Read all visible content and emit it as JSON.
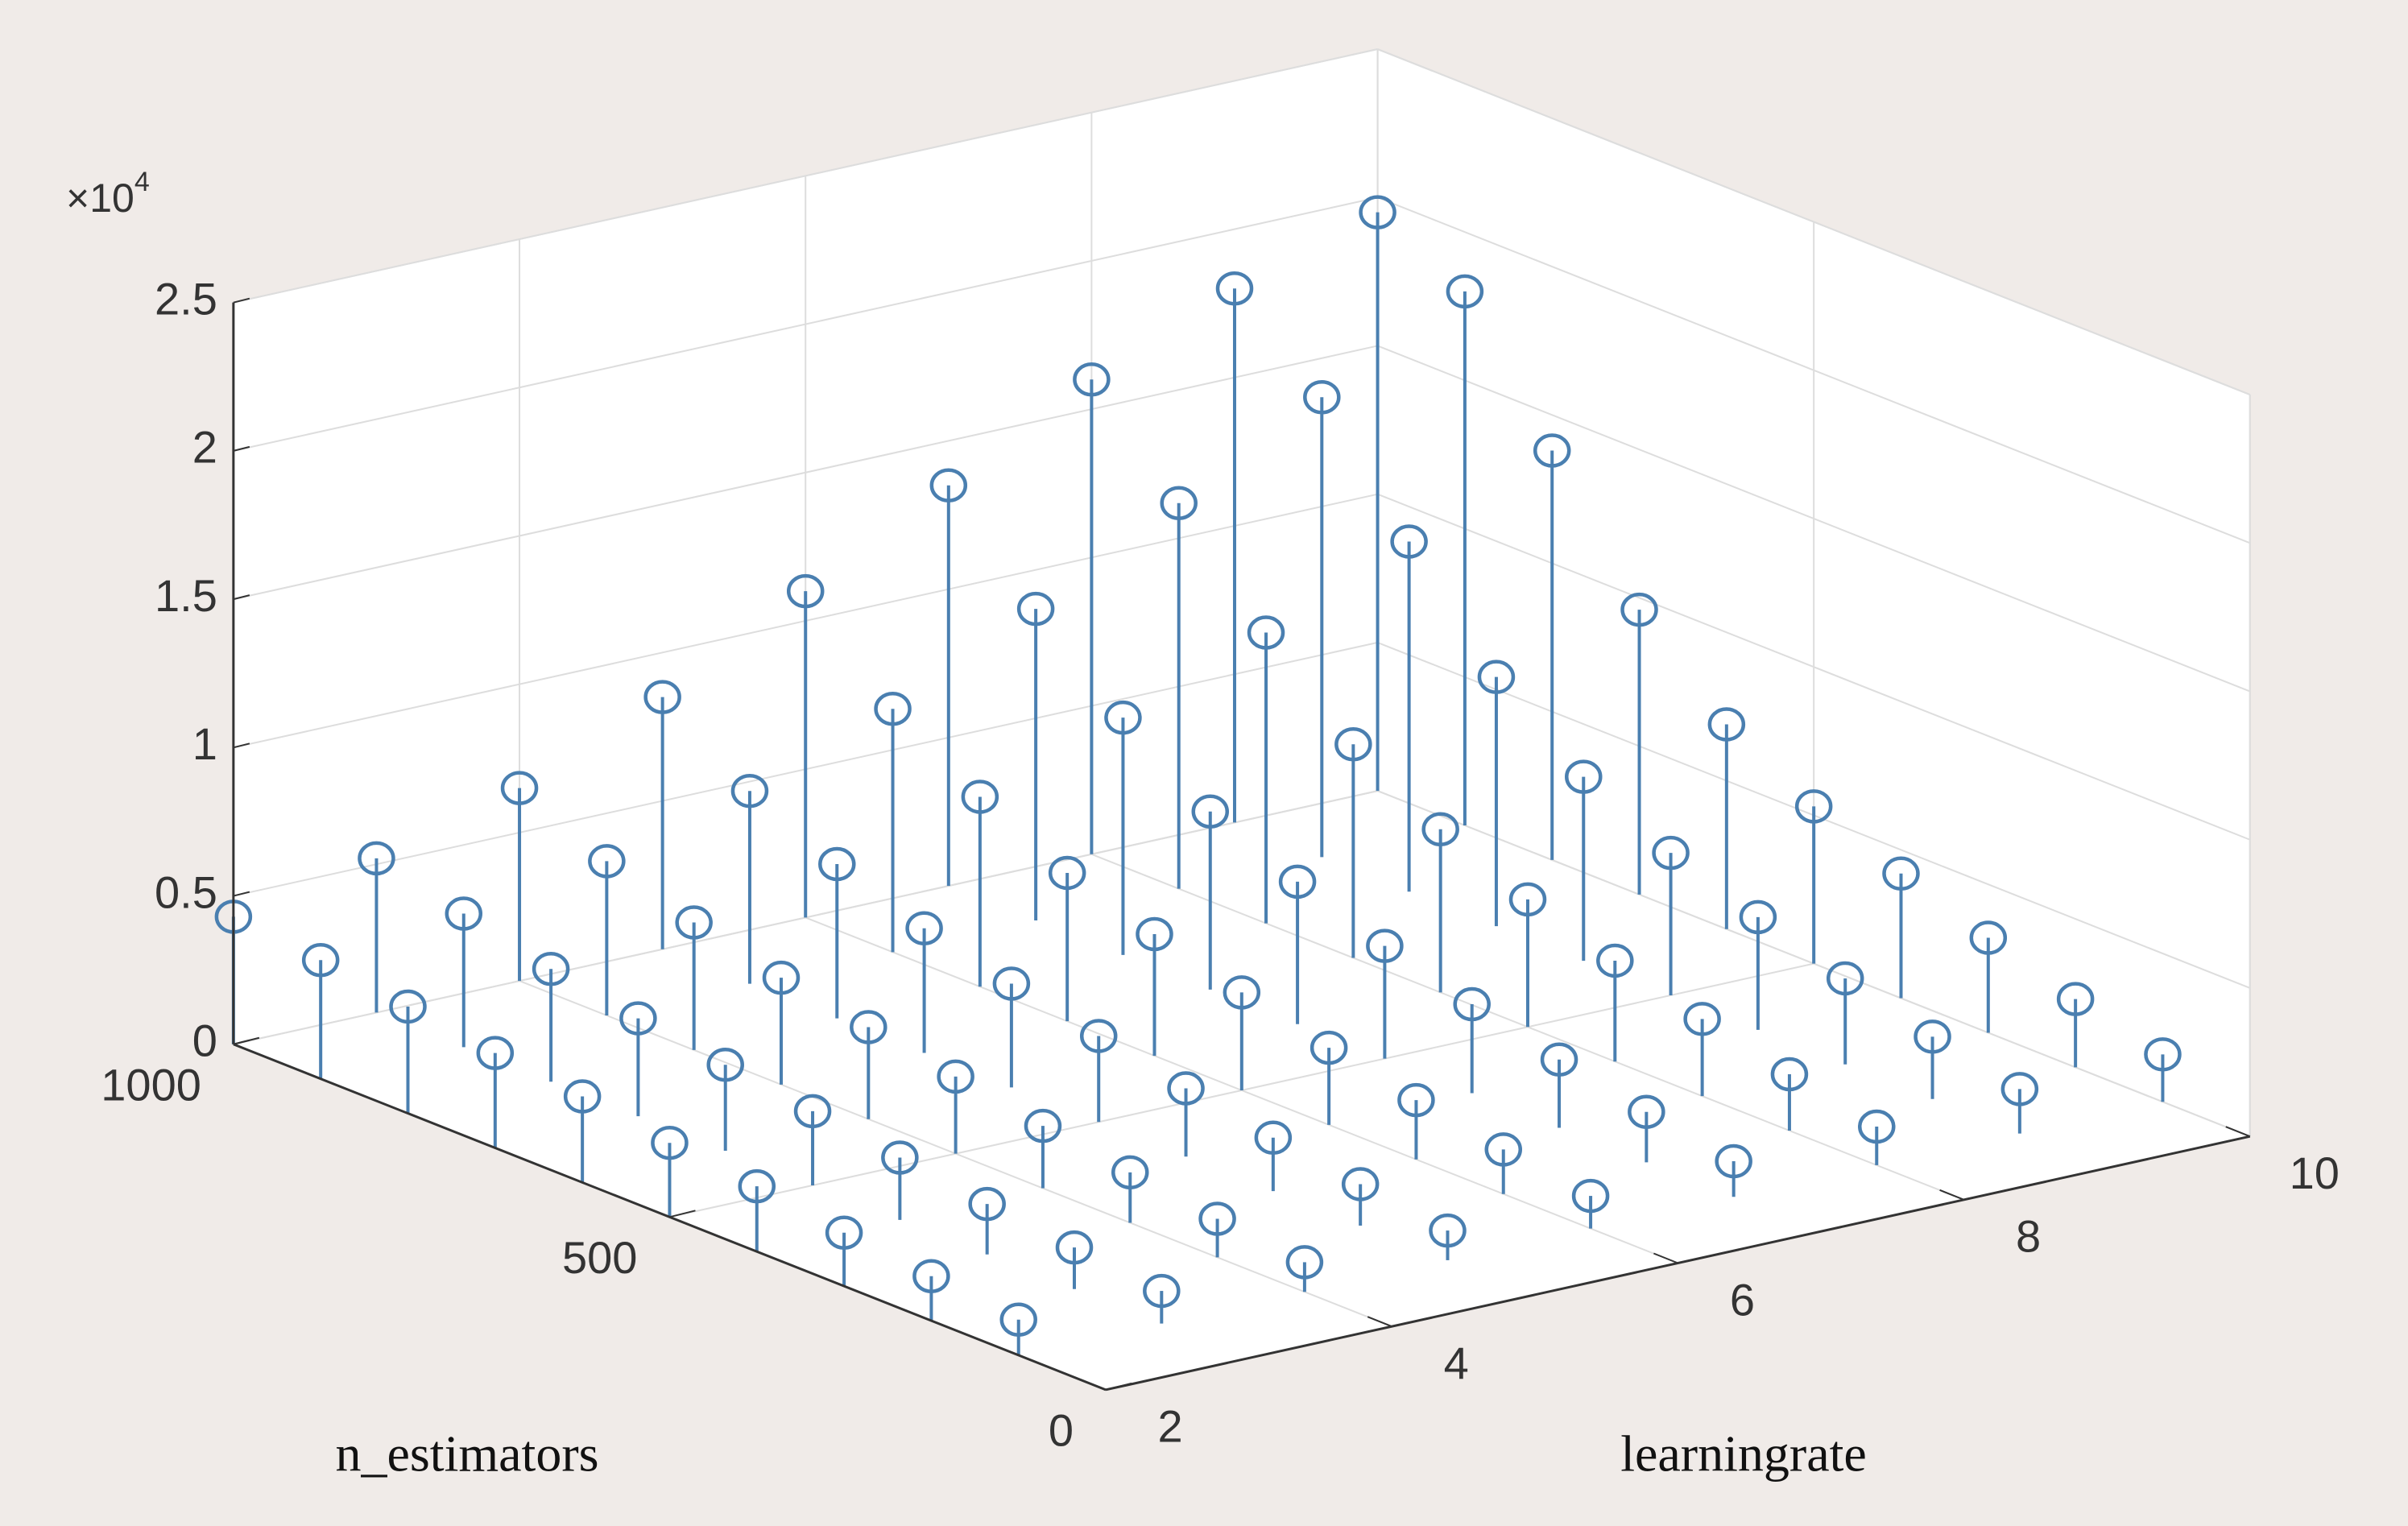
{
  "chart_data": {
    "type": "stem3",
    "x_label": "learningrate",
    "y_label": "n_estimators",
    "z_exponent": {
      "base": "×10",
      "power": "4"
    },
    "x": [
      2,
      3,
      4,
      5,
      6,
      7,
      8,
      9,
      10
    ],
    "y": [
      100,
      200,
      300,
      400,
      500,
      600,
      700,
      800,
      900,
      1000
    ],
    "values": [
      [
        1200,
        1100,
        1000,
        1000,
        1100,
        1200,
        1300,
        1500,
        1600
      ],
      [
        1500,
        1400,
        1300,
        1400,
        1500,
        1700,
        1900,
        2100,
        2300
      ],
      [
        1800,
        1700,
        1700,
        1800,
        2000,
        2300,
        2600,
        2900,
        3200
      ],
      [
        2200,
        2100,
        2100,
        2300,
        2600,
        3000,
        3400,
        3800,
        4200
      ],
      [
        2500,
        2500,
        2600,
        2900,
        3300,
        3800,
        4300,
        4800,
        5300
      ],
      [
        2900,
        2900,
        3100,
        3500,
        4100,
        4800,
        5500,
        6200,
        6900
      ],
      [
        3200,
        3300,
        3600,
        4200,
        5000,
        6000,
        7200,
        8400,
        9600
      ],
      [
        3600,
        3800,
        4300,
        5200,
        6400,
        8000,
        9800,
        11800,
        13800
      ],
      [
        4000,
        4500,
        5200,
        6500,
        8200,
        10500,
        13000,
        15500,
        18000
      ],
      [
        4300,
        5200,
        6500,
        8500,
        11000,
        13500,
        16000,
        18000,
        19500
      ]
    ],
    "color": "#4a7fb0",
    "xlim": [
      2,
      10
    ],
    "ylim": [
      0,
      1000
    ],
    "zlim": [
      0,
      25000
    ],
    "xticks": [
      2,
      4,
      6,
      8,
      10
    ],
    "yticks": [
      0,
      500,
      1000
    ],
    "zticks": [
      0,
      {
        "value": 5000,
        "label": "0.5"
      },
      {
        "value": 10000,
        "label": "1"
      },
      {
        "value": 15000,
        "label": "1.5"
      },
      {
        "value": 20000,
        "label": "2"
      },
      {
        "value": 25000,
        "label": "2.5"
      }
    ],
    "grid": true
  }
}
